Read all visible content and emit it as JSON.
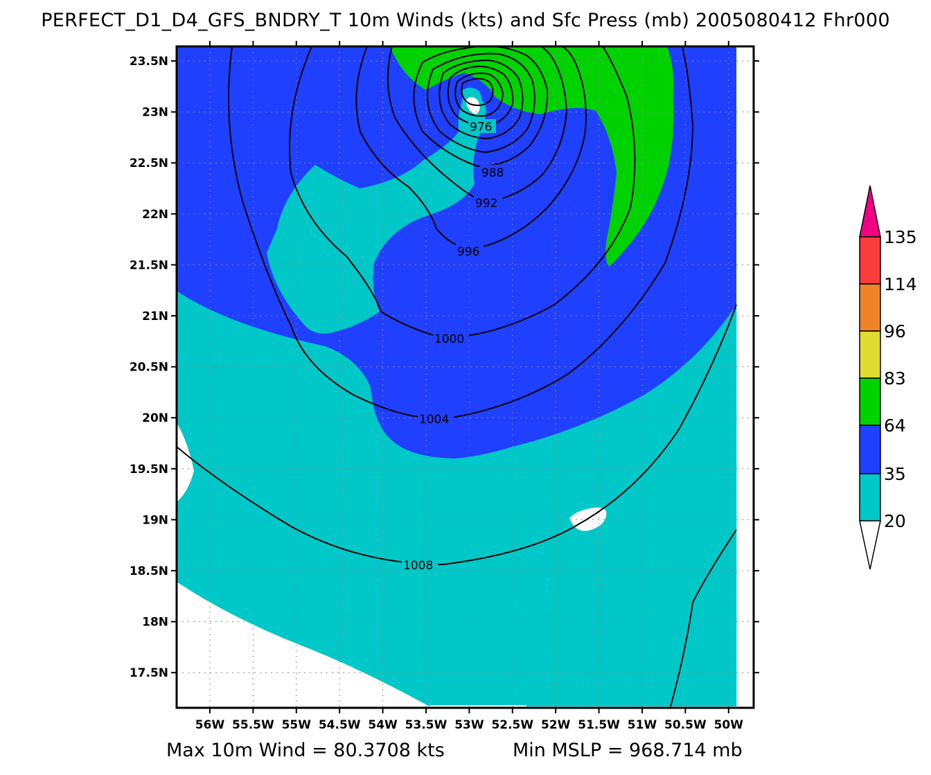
{
  "title": "PERFECT_D1_D4_GFS_BNDRY_T 10m Winds (kts) and Sfc Press (mb) 2005080412 Fhr000",
  "footer": {
    "max_wind": "Max 10m Wind = 80.3708 kts",
    "min_mslp": "Min MSLP = 968.714 mb"
  },
  "map": {
    "lat_labels": [
      "23.5N",
      "23N",
      "22.5N",
      "22N",
      "21.5N",
      "21N",
      "20.5N",
      "20N",
      "19.5N",
      "19N",
      "18.5N",
      "18N",
      "17.5N"
    ],
    "lon_labels": [
      "56W",
      "55.5W",
      "55W",
      "54.5W",
      "54W",
      "53.5W",
      "53W",
      "52.5W",
      "52W",
      "51.5W",
      "51W",
      "50.5W",
      "50W"
    ],
    "contour_labels": [
      "976",
      "988",
      "992",
      "996",
      "1000",
      "1004",
      "1008"
    ],
    "wind_colors": {
      "below_20": "#ffffff",
      "20_35": "#00c8c8",
      "35_64": "#2040ff",
      "64_83": "#00d200",
      "83_96": "#e0dc32",
      "96_114": "#f08228",
      "114_135": "#fa3c3c",
      "above_135": "#f00082"
    }
  },
  "colorbar": {
    "labels": [
      "135",
      "114",
      "96",
      "83",
      "64",
      "35",
      "20"
    ]
  }
}
